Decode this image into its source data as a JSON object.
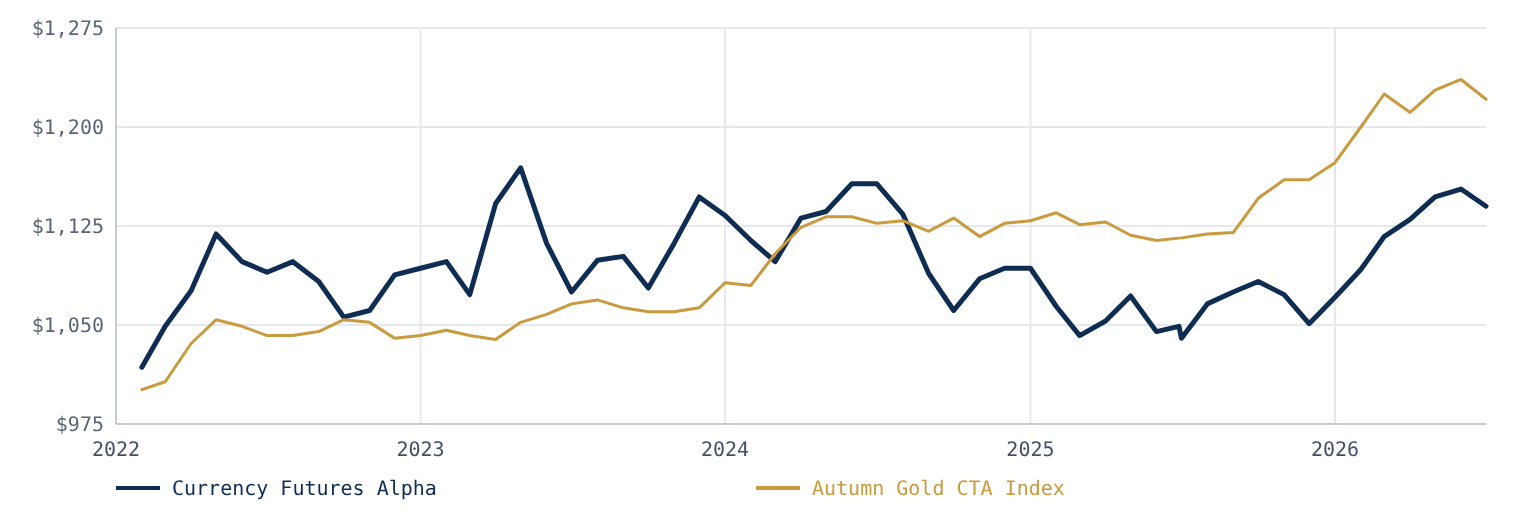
{
  "chart_data": {
    "type": "line",
    "xlim": [
      "2022-01",
      "2026-07"
    ],
    "ylim": [
      975,
      1275
    ],
    "xticks": [
      {
        "value": "2022-01",
        "label": "2022"
      },
      {
        "value": "2023-01",
        "label": "2023"
      },
      {
        "value": "2024-01",
        "label": "2024"
      },
      {
        "value": "2025-01",
        "label": "2025"
      },
      {
        "value": "2026-01",
        "label": "2026"
      }
    ],
    "yticks": [
      {
        "value": 975,
        "label": "$975"
      },
      {
        "value": 1050,
        "label": "$1,050"
      },
      {
        "value": 1125,
        "label": "$1,125"
      },
      {
        "value": 1200,
        "label": "$1,200"
      },
      {
        "value": 1275,
        "label": "$1,275"
      }
    ],
    "grid": true,
    "legend": "bottom",
    "line_style": "solid",
    "series": [
      {
        "name": "Currency Futures Alpha",
        "color": "#0f2d52",
        "x": [
          "2022-02",
          "2022-03",
          "2022-04",
          "2022-05",
          "2022-06",
          "2022-07",
          "2022-08",
          "2022-09",
          "2022-10",
          "2022-11",
          "2022-12",
          "2023-01",
          "2023-02",
          "2023-03",
          "2023-04",
          "2023-05",
          "2023-06",
          "2023-07",
          "2023-08",
          "2023-09",
          "2023-10",
          "2023-11",
          "2023-12",
          "2024-01",
          "2024-02",
          "2024-03",
          "2024-04",
          "2024-05",
          "2024-06",
          "2024-07",
          "2024-08",
          "2024-09",
          "2024-10",
          "2024-11",
          "2024-12",
          "2025-01",
          "2025-02",
          "2025-03",
          "2025-04",
          "2025-05",
          "2025-06",
          "2025-06-28",
          "2025-07",
          "2025-08",
          "2025-09",
          "2025-10",
          "2025-11",
          "2025-12",
          "2026-01",
          "2026-02",
          "2026-03",
          "2026-04",
          "2026-05",
          "2026-06",
          "2026-07"
        ],
        "values": [
          1018,
          1049,
          1076,
          1119,
          1098,
          1090,
          1098,
          1083,
          1056,
          1061,
          1088,
          1093,
          1098,
          1073,
          1142,
          1169,
          1112,
          1075,
          1099,
          1102,
          1078,
          1112,
          1147,
          1133,
          1114,
          1098,
          1131,
          1136,
          1157,
          1157,
          1134,
          1089,
          1061,
          1085,
          1093,
          1093,
          1064,
          1042,
          1053,
          1072,
          1045,
          1049,
          1040,
          1066,
          1075,
          1083,
          1073,
          1051,
          1071,
          1092,
          1117,
          1130,
          1147,
          1153,
          1140
        ]
      },
      {
        "name": "Autumn Gold CTA Index",
        "color": "#c99a3e",
        "x": [
          "2022-02",
          "2022-03",
          "2022-04",
          "2022-05",
          "2022-06",
          "2022-07",
          "2022-08",
          "2022-09",
          "2022-10",
          "2022-11",
          "2022-12",
          "2023-01",
          "2023-02",
          "2023-03",
          "2023-04",
          "2023-05",
          "2023-06",
          "2023-07",
          "2023-08",
          "2023-09",
          "2023-10",
          "2023-11",
          "2023-12",
          "2024-01",
          "2024-02",
          "2024-03",
          "2024-04",
          "2024-05",
          "2024-06",
          "2024-07",
          "2024-08",
          "2024-09",
          "2024-10",
          "2024-11",
          "2024-12",
          "2025-01",
          "2025-02",
          "2025-03",
          "2025-04",
          "2025-05",
          "2025-06",
          "2025-07",
          "2025-08",
          "2025-09",
          "2025-10",
          "2025-11",
          "2025-12",
          "2026-01",
          "2026-02",
          "2026-03",
          "2026-04",
          "2026-05",
          "2026-06",
          "2026-07"
        ],
        "values": [
          1001,
          1007,
          1036,
          1054,
          1049,
          1042,
          1042,
          1045,
          1054,
          1052,
          1040,
          1042,
          1046,
          1042,
          1039,
          1052,
          1058,
          1066,
          1069,
          1063,
          1060,
          1060,
          1063,
          1082,
          1080,
          1104,
          1124,
          1132,
          1132,
          1127,
          1129,
          1121,
          1131,
          1117,
          1127,
          1129,
          1135,
          1126,
          1128,
          1118,
          1114,
          1116,
          1119,
          1120,
          1146,
          1160,
          1160,
          1173,
          1200,
          1225,
          1211,
          1228,
          1236,
          1221
        ]
      }
    ]
  }
}
